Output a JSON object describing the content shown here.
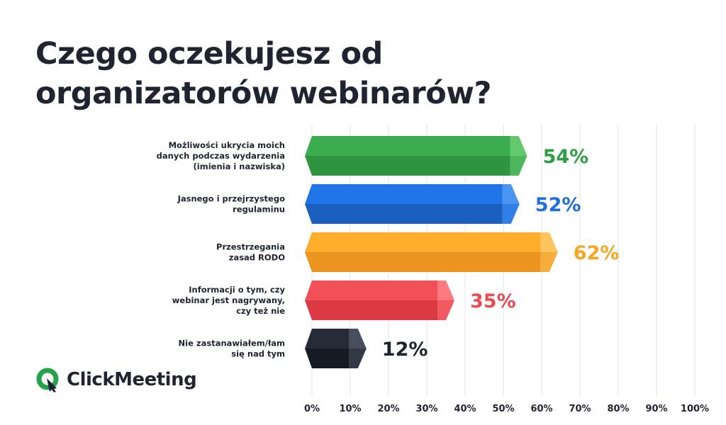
{
  "page": {
    "title_lines": [
      "Czego oczekujesz od",
      "organizatorów webinarów?"
    ],
    "logo_text": "ClickMeeting",
    "logo_color": "#26a34a"
  },
  "chart_data": {
    "type": "bar",
    "orientation": "horizontal",
    "title": "Czego oczekujesz od organizatorów webinarów?",
    "xlabel": "",
    "ylabel": "",
    "xlim": [
      0,
      100
    ],
    "x_ticks": [
      "0%",
      "10%",
      "20%",
      "30%",
      "40%",
      "50%",
      "60%",
      "70%",
      "80%",
      "90%",
      "100%"
    ],
    "grid": true,
    "unit": "%",
    "categories": [
      [
        "Możliwości ukrycia moich",
        "danych podczas wydarzenia",
        "(imienia i nazwiska)"
      ],
      [
        "Jasnego i przejrzystego",
        "regulaminu"
      ],
      [
        "Przestrzegania",
        "zasad RODO"
      ],
      [
        "Informacji o tym, czy",
        "webinar jest nagrywany,",
        "czy też nie"
      ],
      [
        "Nie zastanawiałem/łam",
        "się nad tym"
      ]
    ],
    "values": [
      54,
      52,
      62,
      35,
      12
    ],
    "value_labels": [
      "54%",
      "52%",
      "62%",
      "35%",
      "12%"
    ],
    "colors": [
      {
        "top": "#3aad4e",
        "bottom": "#2f9440",
        "cap_top": "#64c86f",
        "cap_bottom": "#4eb75c",
        "label": "#2f9e44"
      },
      {
        "top": "#1f74e6",
        "bottom": "#1a5fbe",
        "cap_top": "#4a95f2",
        "cap_bottom": "#2f7fe6",
        "label": "#1f6fe0"
      },
      {
        "top": "#ffae2b",
        "bottom": "#eb9520",
        "cap_top": "#ffc45c",
        "cap_bottom": "#f7ad3c",
        "label": "#f5a623"
      },
      {
        "top": "#f25059",
        "bottom": "#de3a45",
        "cap_top": "#ff7a80",
        "cap_bottom": "#f25861",
        "label": "#ee4a52"
      },
      {
        "top": "#252a36",
        "bottom": "#161a22",
        "cap_top": "#474e5e",
        "cap_bottom": "#333946",
        "label": "#1f2430"
      }
    ]
  }
}
